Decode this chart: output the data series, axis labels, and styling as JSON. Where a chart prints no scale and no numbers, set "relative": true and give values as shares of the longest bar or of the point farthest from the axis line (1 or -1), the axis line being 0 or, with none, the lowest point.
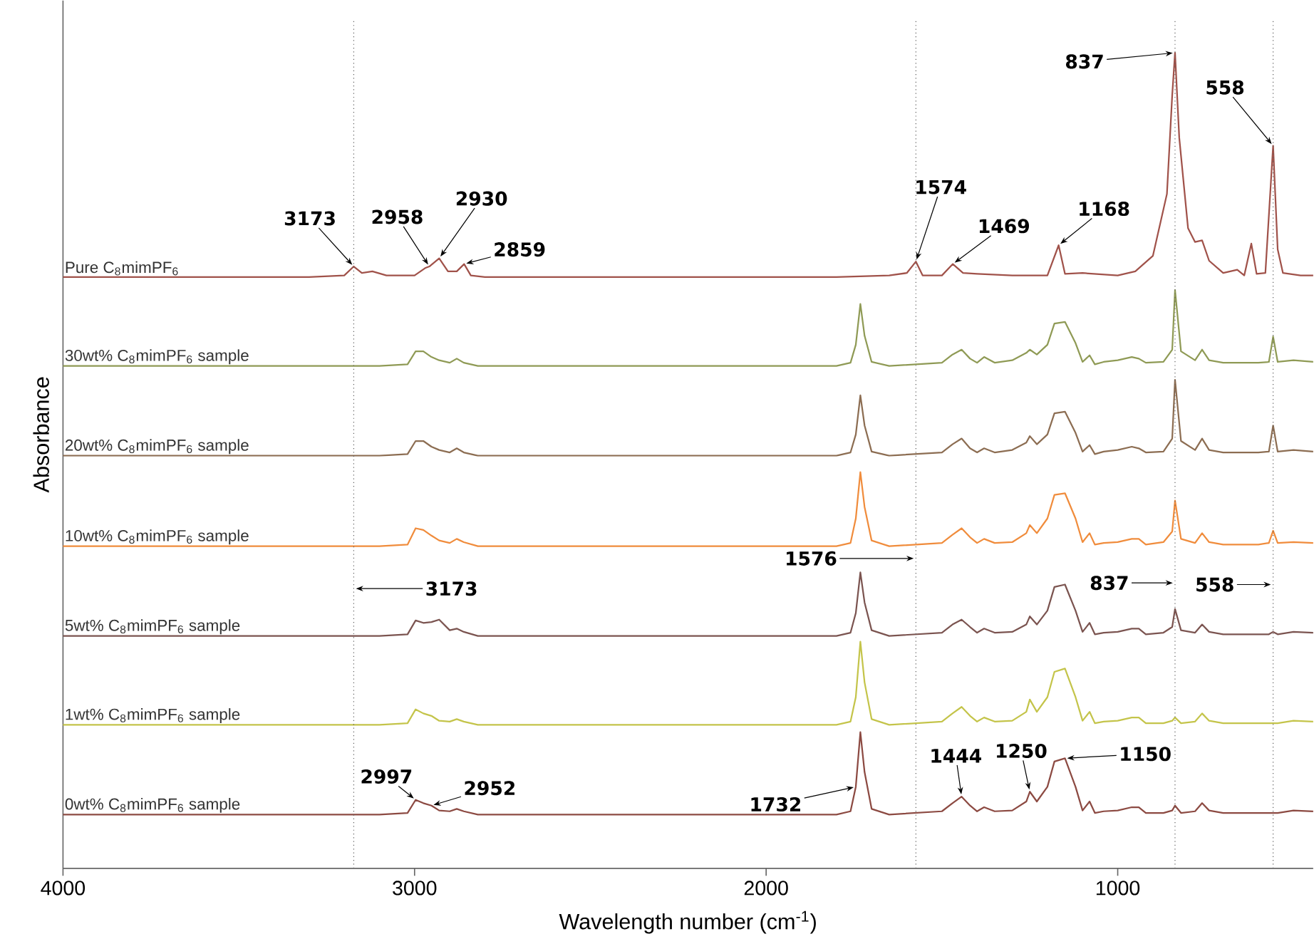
{
  "chart_data": {
    "type": "line",
    "xlabel": "Wavelength number (cm$^{-1}$)",
    "ylabel": "Absorbance",
    "relative": true,
    "xlim": [
      4000,
      444
    ],
    "xticks": [
      4000,
      3000,
      2000,
      1000
    ],
    "tick_labels": "x",
    "legend": false,
    "grid": false,
    "line_style": "solid",
    "x": [
      4000,
      3500,
      3200,
      3100,
      3020,
      2997,
      2975,
      2952,
      2930,
      2900,
      2880,
      2860,
      2820,
      2500,
      2000,
      1800,
      1760,
      1745,
      1732,
      1720,
      1700,
      1650,
      1500,
      1470,
      1444,
      1420,
      1400,
      1380,
      1350,
      1300,
      1260,
      1250,
      1230,
      1200,
      1180,
      1150,
      1120,
      1100,
      1080,
      1065,
      1040,
      1000,
      960,
      940,
      920,
      870,
      845,
      837,
      820,
      780,
      760,
      740,
      700,
      600,
      570,
      558,
      545,
      500,
      444
    ],
    "series": [
      {
        "name": "Pure C$_{8}$mimPF$_{6}$",
        "color": "#a0524a",
        "x": [
          4000,
          3300,
          3200,
          3173,
          3150,
          3120,
          3080,
          3000,
          2970,
          2958,
          2930,
          2905,
          2880,
          2859,
          2840,
          2800,
          1800,
          1650,
          1600,
          1574,
          1555,
          1500,
          1469,
          1440,
          1400,
          1300,
          1200,
          1168,
          1150,
          1100,
          1000,
          950,
          900,
          860,
          845,
          837,
          825,
          800,
          780,
          760,
          740,
          700,
          660,
          640,
          620,
          605,
          580,
          558,
          545,
          530,
          480,
          444
        ],
        "values": [
          0.725,
          0.725,
          0.727,
          0.738,
          0.73,
          0.732,
          0.727,
          0.727,
          0.736,
          0.738,
          0.748,
          0.732,
          0.732,
          0.741,
          0.727,
          0.725,
          0.725,
          0.727,
          0.73,
          0.744,
          0.727,
          0.727,
          0.741,
          0.73,
          0.729,
          0.727,
          0.727,
          0.764,
          0.729,
          0.73,
          0.727,
          0.732,
          0.751,
          0.827,
          0.948,
          1.0,
          0.896,
          0.785,
          0.768,
          0.77,
          0.745,
          0.73,
          0.734,
          0.727,
          0.766,
          0.729,
          0.73,
          0.886,
          0.759,
          0.73,
          0.727,
          0.727
        ]
      },
      {
        "name": "30wt% C$_{8}$mimPF$_{6}$ sample",
        "color": "#8f9a55",
        "values": [
          0.616,
          0.616,
          0.616,
          0.616,
          0.618,
          0.634,
          0.634,
          0.627,
          0.623,
          0.62,
          0.625,
          0.62,
          0.616,
          0.616,
          0.616,
          0.616,
          0.62,
          0.642,
          0.692,
          0.653,
          0.621,
          0.616,
          0.62,
          0.63,
          0.636,
          0.625,
          0.62,
          0.627,
          0.62,
          0.623,
          0.632,
          0.636,
          0.63,
          0.642,
          0.668,
          0.67,
          0.644,
          0.621,
          0.629,
          0.618,
          0.621,
          0.623,
          0.627,
          0.625,
          0.62,
          0.621,
          0.636,
          0.709,
          0.634,
          0.623,
          0.636,
          0.623,
          0.62,
          0.62,
          0.621,
          0.652,
          0.621,
          0.623,
          0.621
        ]
      },
      {
        "name": "20wt% C$_{8}$mimPF$_{6}$ sample",
        "color": "#8c6d52",
        "values": [
          0.506,
          0.506,
          0.506,
          0.506,
          0.508,
          0.524,
          0.524,
          0.517,
          0.513,
          0.51,
          0.515,
          0.51,
          0.506,
          0.506,
          0.506,
          0.506,
          0.51,
          0.532,
          0.58,
          0.543,
          0.511,
          0.506,
          0.51,
          0.52,
          0.527,
          0.515,
          0.51,
          0.515,
          0.51,
          0.513,
          0.522,
          0.53,
          0.52,
          0.532,
          0.558,
          0.56,
          0.534,
          0.511,
          0.519,
          0.508,
          0.511,
          0.513,
          0.517,
          0.515,
          0.51,
          0.511,
          0.527,
          0.599,
          0.524,
          0.513,
          0.527,
          0.513,
          0.51,
          0.51,
          0.511,
          0.543,
          0.511,
          0.513,
          0.511
        ]
      },
      {
        "name": "10wt% C$_{8}$mimPF$_{6}$ sample",
        "color": "#f08c3c",
        "values": [
          0.395,
          0.395,
          0.395,
          0.395,
          0.397,
          0.417,
          0.415,
          0.408,
          0.402,
          0.399,
          0.404,
          0.4,
          0.395,
          0.395,
          0.395,
          0.395,
          0.399,
          0.429,
          0.486,
          0.443,
          0.402,
          0.395,
          0.399,
          0.409,
          0.417,
          0.406,
          0.399,
          0.404,
          0.399,
          0.4,
          0.411,
          0.421,
          0.411,
          0.429,
          0.458,
          0.46,
          0.429,
          0.4,
          0.411,
          0.397,
          0.399,
          0.4,
          0.404,
          0.404,
          0.397,
          0.4,
          0.413,
          0.451,
          0.404,
          0.399,
          0.411,
          0.4,
          0.397,
          0.397,
          0.399,
          0.414,
          0.399,
          0.4,
          0.399
        ]
      },
      {
        "name": "5wt% C$_{8}$mimPF$_{6}$ sample",
        "color": "#7b5450",
        "values": [
          0.285,
          0.285,
          0.285,
          0.285,
          0.287,
          0.304,
          0.301,
          0.302,
          0.305,
          0.292,
          0.294,
          0.29,
          0.285,
          0.285,
          0.285,
          0.285,
          0.289,
          0.313,
          0.363,
          0.326,
          0.292,
          0.285,
          0.289,
          0.299,
          0.305,
          0.296,
          0.289,
          0.294,
          0.289,
          0.29,
          0.299,
          0.309,
          0.299,
          0.316,
          0.345,
          0.348,
          0.316,
          0.29,
          0.301,
          0.287,
          0.289,
          0.29,
          0.294,
          0.294,
          0.287,
          0.289,
          0.296,
          0.318,
          0.292,
          0.289,
          0.299,
          0.29,
          0.287,
          0.287,
          0.287,
          0.29,
          0.287,
          0.29,
          0.289
        ]
      },
      {
        "name": "1wt% C$_{8}$mimPF$_{6}$ sample",
        "color": "#c4c44a",
        "values": [
          0.176,
          0.176,
          0.176,
          0.176,
          0.178,
          0.195,
          0.19,
          0.187,
          0.181,
          0.18,
          0.183,
          0.18,
          0.176,
          0.176,
          0.176,
          0.176,
          0.18,
          0.21,
          0.278,
          0.228,
          0.183,
          0.176,
          0.18,
          0.19,
          0.198,
          0.187,
          0.18,
          0.185,
          0.18,
          0.181,
          0.192,
          0.207,
          0.192,
          0.21,
          0.241,
          0.245,
          0.21,
          0.181,
          0.192,
          0.178,
          0.18,
          0.181,
          0.185,
          0.185,
          0.178,
          0.178,
          0.181,
          0.185,
          0.178,
          0.18,
          0.19,
          0.181,
          0.178,
          0.178,
          0.178,
          0.178,
          0.178,
          0.181,
          0.18
        ]
      },
      {
        "name": "0wt% C$_{8}$mimPF$_{6}$ sample",
        "color": "#8c4a42",
        "values": [
          0.066,
          0.066,
          0.066,
          0.066,
          0.068,
          0.084,
          0.08,
          0.077,
          0.071,
          0.07,
          0.073,
          0.07,
          0.066,
          0.066,
          0.066,
          0.066,
          0.07,
          0.1,
          0.167,
          0.118,
          0.073,
          0.066,
          0.07,
          0.08,
          0.088,
          0.077,
          0.07,
          0.075,
          0.07,
          0.071,
          0.082,
          0.094,
          0.082,
          0.1,
          0.131,
          0.135,
          0.1,
          0.071,
          0.082,
          0.068,
          0.07,
          0.071,
          0.075,
          0.075,
          0.068,
          0.068,
          0.071,
          0.077,
          0.068,
          0.07,
          0.08,
          0.071,
          0.068,
          0.068,
          0.068,
          0.068,
          0.068,
          0.071,
          0.07
        ]
      }
    ],
    "ref_lines": [
      {
        "axis": "x",
        "value": 3173,
        "color": "#606060",
        "line_style": "dotted"
      },
      {
        "axis": "x",
        "value": 1574,
        "color": "#606060",
        "line_style": "dotted"
      },
      {
        "axis": "x",
        "value": 837,
        "color": "#606060",
        "line_style": "dotted"
      },
      {
        "axis": "x",
        "value": 558,
        "color": "#606060",
        "line_style": "dotted"
      }
    ],
    "annotations": [
      {
        "text": "3173",
        "x": 3173,
        "y": 0.738
      },
      {
        "text": "2958",
        "x": 2958,
        "y": 0.738
      },
      {
        "text": "2930",
        "x": 2930,
        "y": 0.748
      },
      {
        "text": "2859",
        "x": 2859,
        "y": 0.741
      },
      {
        "text": "1574",
        "x": 1574,
        "y": 0.744
      },
      {
        "text": "1469",
        "x": 1469,
        "y": 0.741
      },
      {
        "text": "1168",
        "x": 1168,
        "y": 0.764
      },
      {
        "text": "837",
        "x": 837,
        "y": 1.0
      },
      {
        "text": "558",
        "x": 558,
        "y": 0.886
      },
      {
        "text": "3173",
        "x": 3173,
        "y": 0.343
      },
      {
        "text": "1576",
        "x": 1574,
        "y": 0.38
      },
      {
        "text": "837",
        "x": 837,
        "y": 0.35
      },
      {
        "text": "558",
        "x": 558,
        "y": 0.348
      },
      {
        "text": "1732",
        "x": 1745,
        "y": 0.1
      },
      {
        "text": "1444",
        "x": 1444,
        "y": 0.088
      },
      {
        "text": "1250",
        "x": 1250,
        "y": 0.094
      },
      {
        "text": "1150",
        "x": 1150,
        "y": 0.135
      },
      {
        "text": "2997",
        "x": 2997,
        "y": 0.084
      },
      {
        "text": "2952",
        "x": 2952,
        "y": 0.077
      }
    ]
  }
}
